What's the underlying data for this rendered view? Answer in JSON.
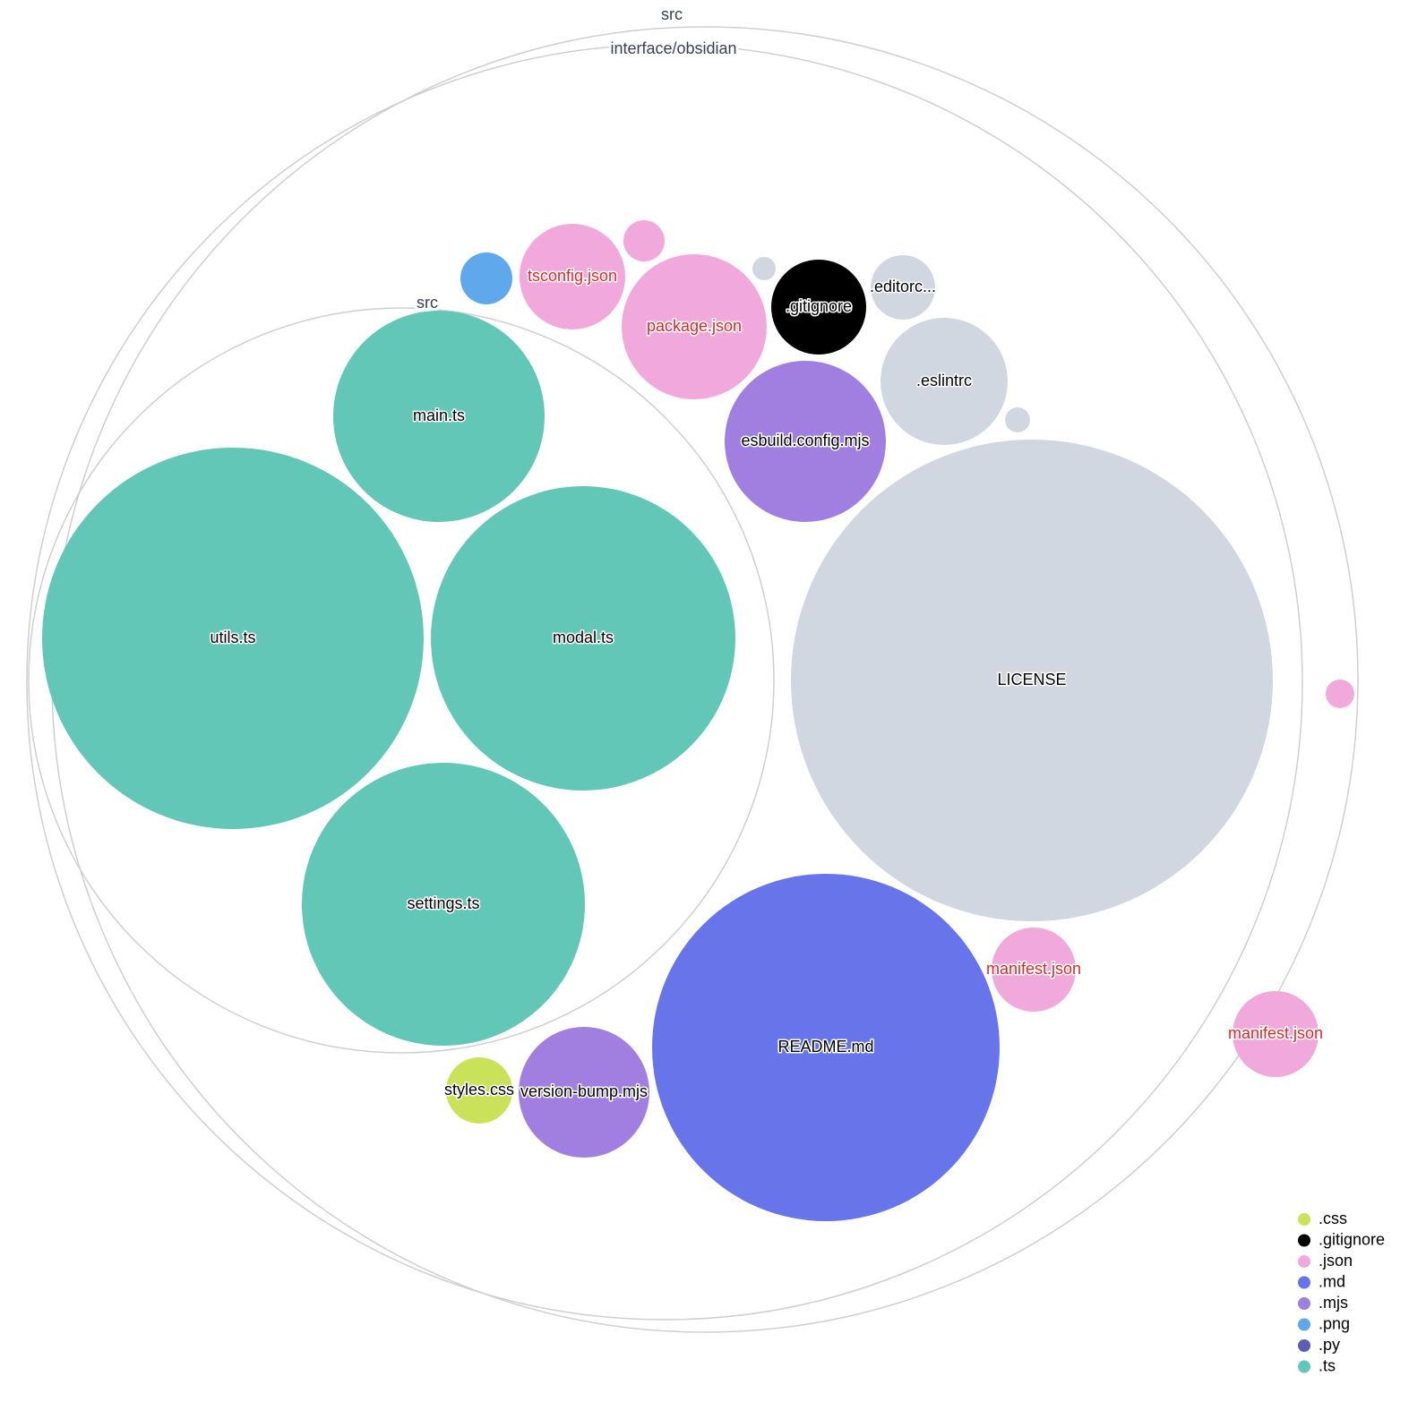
{
  "folders": [
    {
      "name": "src"
    },
    {
      "name": "interface/obsidian"
    },
    {
      "name": "src"
    }
  ],
  "files": [
    {
      "label": "main.ts",
      "ext": ".ts"
    },
    {
      "label": "utils.ts",
      "ext": ".ts"
    },
    {
      "label": "modal.ts",
      "ext": ".ts"
    },
    {
      "label": "settings.ts",
      "ext": ".ts"
    },
    {
      "label": "LICENSE",
      "ext": ""
    },
    {
      "label": "README.md",
      "ext": ".md"
    },
    {
      "label": "esbuild.config.mjs",
      "ext": ".mjs"
    },
    {
      "label": ".eslintrc",
      "ext": ""
    },
    {
      "label": "package.json",
      "ext": ".json"
    },
    {
      "label": "tsconfig.json",
      "ext": ".json"
    },
    {
      "label": ".gitignore",
      "ext": ".gitignore"
    },
    {
      "label": ".editorc...",
      "ext": ""
    },
    {
      "label": "",
      "ext": ".png"
    },
    {
      "label": "",
      "ext": ".json"
    },
    {
      "label": "",
      "ext": ""
    },
    {
      "label": "",
      "ext": ""
    },
    {
      "label": "manifest.json",
      "ext": ".json"
    },
    {
      "label": "manifest.json",
      "ext": ".json"
    },
    {
      "label": "",
      "ext": ".json"
    },
    {
      "label": "styles.css",
      "ext": ".css"
    },
    {
      "label": "version-bump.mjs",
      "ext": ".mjs"
    }
  ],
  "colors": {
    ".css": "#c9e25a",
    ".gitignore": "#000000",
    ".json": "#f1a9dc",
    ".md": "#6875ea",
    ".mjs": "#a07fe0",
    ".png": "#60a8ec",
    ".py": "#5a5db3",
    ".ts": "#63c7b8",
    "": "#d1d7e0"
  },
  "highlight_label_color": "#d42a2a",
  "legend": [
    ".css",
    ".gitignore",
    ".json",
    ".md",
    ".mjs",
    ".png",
    ".py",
    ".ts"
  ]
}
